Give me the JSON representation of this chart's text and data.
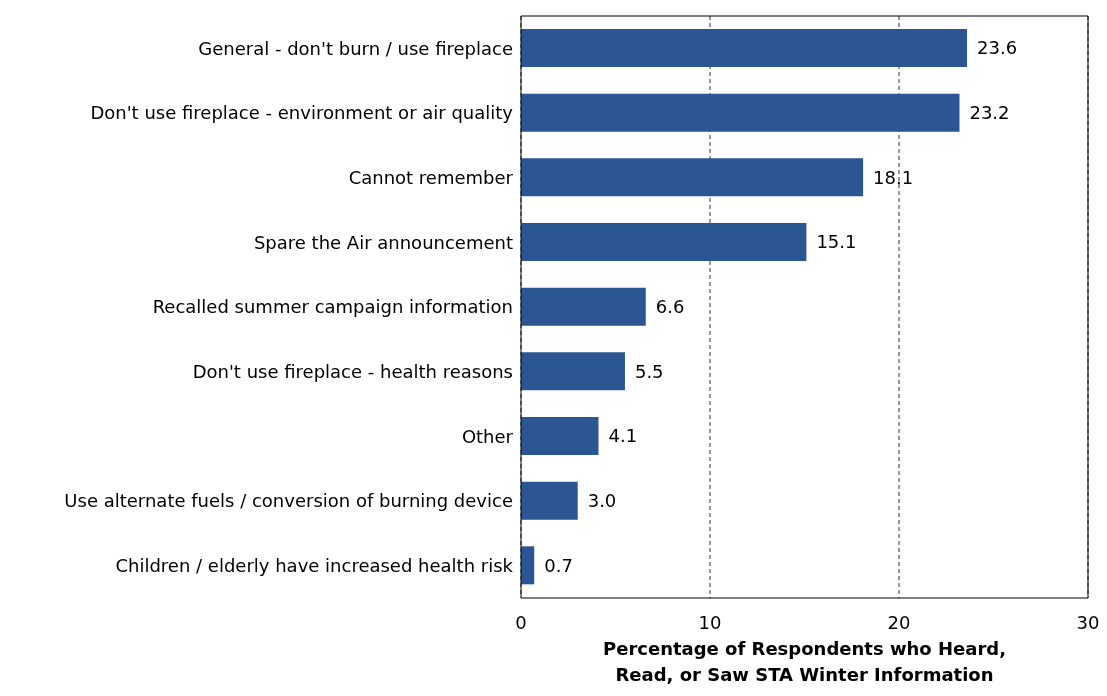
{
  "chart_data": {
    "type": "bar",
    "orientation": "horizontal",
    "xlabel": "Percentage of Respondents who Heard, Read, or Saw STA Winter Information",
    "categories": [
      "General - don't burn / use fireplace",
      "Don't use fireplace - environment or air quality",
      "Cannot remember",
      "Spare the Air announcement",
      "Recalled summer campaign information",
      "Don't use fireplace - health reasons",
      "Other",
      "Use alternate fuels / conversion of burning device",
      "Children / elderly have increased health risk"
    ],
    "values": [
      23.6,
      23.2,
      18.1,
      15.1,
      6.6,
      5.5,
      4.1,
      3.0,
      0.7
    ],
    "value_labels": [
      "23.6",
      "23.2",
      "18.1",
      "15.1",
      "6.6",
      "5.5",
      "4.1",
      "3.0",
      "0.7"
    ],
    "color": "#2b5593",
    "xlim": [
      0,
      30
    ],
    "xticks": [
      0,
      10,
      20,
      30
    ],
    "grid": "x"
  }
}
